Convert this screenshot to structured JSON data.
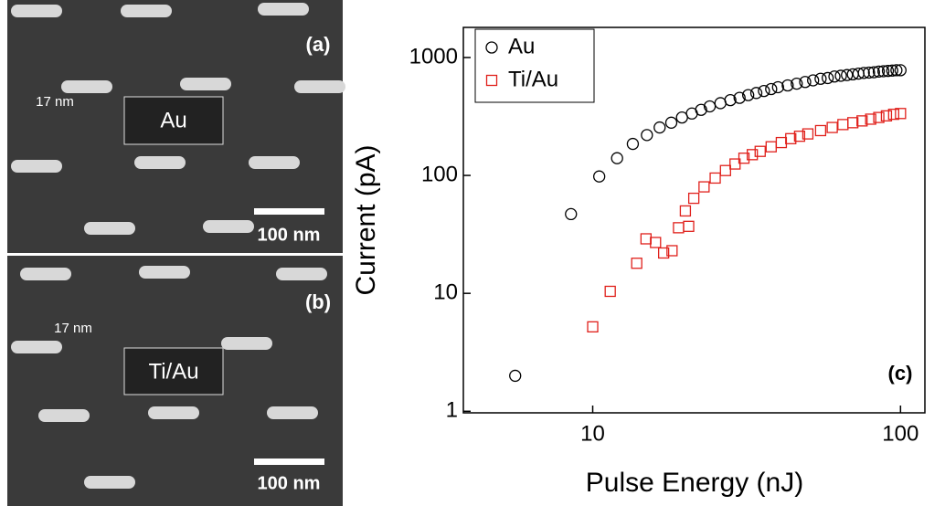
{
  "chart_data": {
    "type": "scatter",
    "log_x": true,
    "log_y": true,
    "xlabel": "Pulse Energy (nJ)",
    "ylabel": "Current (pA)",
    "panel_label": "(c)",
    "xlim": [
      3.8,
      120
    ],
    "ylim": [
      0.97,
      1800
    ],
    "xticks": [
      10,
      100
    ],
    "yticks": [
      1,
      10,
      100,
      1000
    ],
    "legend": "upper left",
    "series": [
      {
        "name": "Au",
        "color": "#000000",
        "marker": "circle",
        "x": [
          5.6,
          8.5,
          10.5,
          12,
          13.5,
          15,
          16.5,
          18,
          19.5,
          21,
          22.5,
          24,
          26,
          28,
          30,
          32,
          34,
          36,
          38,
          40,
          43,
          46,
          49,
          52,
          55,
          58,
          61,
          64,
          67,
          70,
          73,
          76,
          79,
          82,
          85,
          88,
          91,
          94,
          97,
          100
        ],
        "values": [
          2,
          47,
          98,
          140,
          185,
          220,
          255,
          280,
          310,
          335,
          360,
          385,
          410,
          435,
          455,
          480,
          500,
          520,
          540,
          560,
          580,
          600,
          620,
          640,
          660,
          670,
          690,
          700,
          710,
          720,
          730,
          740,
          745,
          750,
          760,
          765,
          770,
          775,
          780,
          780
        ]
      },
      {
        "name": "Ti/Au",
        "color": "#e0201b",
        "marker": "square",
        "x": [
          10,
          11.4,
          13.9,
          14.9,
          16,
          17,
          18.1,
          19,
          20,
          20.5,
          21.3,
          23,
          25,
          27,
          29,
          31,
          33,
          35,
          38,
          41,
          44,
          47,
          50,
          55,
          60,
          65,
          70,
          75,
          80,
          85,
          90,
          95,
          100
        ],
        "values": [
          5.2,
          10.4,
          18,
          29,
          27,
          22,
          23,
          36,
          50,
          37,
          64,
          80,
          95,
          110,
          125,
          140,
          150,
          160,
          175,
          190,
          205,
          215,
          225,
          240,
          255,
          270,
          280,
          290,
          300,
          310,
          320,
          330,
          335
        ]
      }
    ]
  },
  "panels": [
    {
      "label": "(a)",
      "dimension": "17 nm",
      "material": "Au",
      "scale_bar": "100 nm"
    },
    {
      "label": "(b)",
      "dimension": "17 nm",
      "material": "Ti/Au",
      "scale_bar": "100 nm"
    }
  ]
}
